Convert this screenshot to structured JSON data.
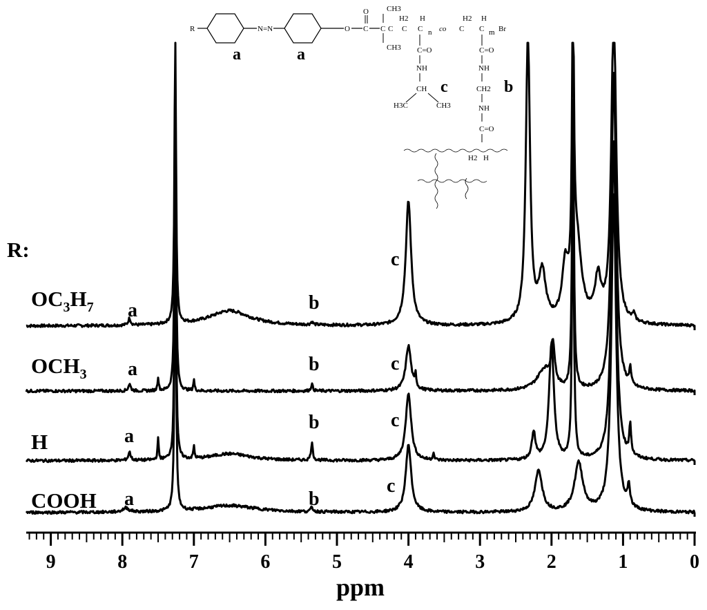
{
  "chart_data": {
    "type": "line",
    "title": "",
    "xlabel": "ppm",
    "ylabel": "",
    "xlim": [
      9.4,
      0
    ],
    "x_ticks": [
      "9",
      "8",
      "7",
      "6",
      "5",
      "4",
      "3",
      "2",
      "1",
      "0"
    ],
    "grid": false,
    "legend_title": "R:",
    "peak_labels": {
      "a": "a",
      "b": "b",
      "c": "c"
    },
    "series": [
      {
        "name": "OC3H7",
        "label_main": "OC",
        "label_sub1": "3",
        "label_mid": "H",
        "label_sub2": "7",
        "peaks": [
          {
            "x": 7.26,
            "h": 460,
            "w": 0.012
          },
          {
            "x": 7.9,
            "h": 10,
            "w": 0.02
          },
          {
            "x": 6.5,
            "h": 22,
            "w": 0.35
          },
          {
            "x": 5.35,
            "h": 4,
            "w": 0.02
          },
          {
            "x": 4.0,
            "h": 180,
            "w": 0.045
          },
          {
            "x": 2.33,
            "h": 420,
            "w": 0.035
          },
          {
            "x": 2.13,
            "h": 70,
            "w": 0.06
          },
          {
            "x": 1.81,
            "h": 70,
            "w": 0.05
          },
          {
            "x": 1.65,
            "h": 120,
            "w": 0.08
          },
          {
            "x": 1.7,
            "h": 420,
            "w": 0.015
          },
          {
            "x": 1.35,
            "h": 60,
            "w": 0.05
          },
          {
            "x": 1.13,
            "h": 460,
            "w": 0.04
          },
          {
            "x": 0.85,
            "h": 10,
            "w": 0.02
          }
        ]
      },
      {
        "name": "OCH3",
        "label_main": "OCH",
        "label_sub1": "3",
        "label_mid": "",
        "label_sub2": "",
        "peaks": [
          {
            "x": 7.26,
            "h": 460,
            "w": 0.012
          },
          {
            "x": 7.9,
            "h": 10,
            "w": 0.02
          },
          {
            "x": 7.5,
            "h": 20,
            "w": 0.01
          },
          {
            "x": 7.0,
            "h": 16,
            "w": 0.01
          },
          {
            "x": 5.35,
            "h": 10,
            "w": 0.015
          },
          {
            "x": 4.0,
            "h": 65,
            "w": 0.045
          },
          {
            "x": 3.9,
            "h": 20,
            "w": 0.01
          },
          {
            "x": 2.1,
            "h": 30,
            "w": 0.12
          },
          {
            "x": 1.98,
            "h": 60,
            "w": 0.03
          },
          {
            "x": 1.7,
            "h": 420,
            "w": 0.015
          },
          {
            "x": 1.13,
            "h": 460,
            "w": 0.04
          },
          {
            "x": 0.9,
            "h": 25,
            "w": 0.015
          }
        ]
      },
      {
        "name": "H",
        "label_main": "H",
        "label_sub1": "",
        "label_mid": "",
        "label_sub2": "",
        "peaks": [
          {
            "x": 7.26,
            "h": 460,
            "w": 0.012
          },
          {
            "x": 7.9,
            "h": 12,
            "w": 0.02
          },
          {
            "x": 7.5,
            "h": 30,
            "w": 0.01
          },
          {
            "x": 7.0,
            "h": 18,
            "w": 0.01
          },
          {
            "x": 6.5,
            "h": 10,
            "w": 0.35
          },
          {
            "x": 5.35,
            "h": 25,
            "w": 0.015
          },
          {
            "x": 4.0,
            "h": 98,
            "w": 0.045
          },
          {
            "x": 3.65,
            "h": 12,
            "w": 0.01
          },
          {
            "x": 2.25,
            "h": 40,
            "w": 0.03
          },
          {
            "x": 2.0,
            "h": 170,
            "w": 0.04
          },
          {
            "x": 1.7,
            "h": 420,
            "w": 0.015
          },
          {
            "x": 1.13,
            "h": 460,
            "w": 0.04
          },
          {
            "x": 0.9,
            "h": 45,
            "w": 0.015
          }
        ]
      },
      {
        "name": "COOH",
        "label_main": "COOH",
        "label_sub1": "",
        "label_mid": "",
        "label_sub2": "",
        "peaks": [
          {
            "x": 7.26,
            "h": 460,
            "w": 0.012
          },
          {
            "x": 7.95,
            "h": 6,
            "w": 0.05
          },
          {
            "x": 6.5,
            "h": 10,
            "w": 0.45
          },
          {
            "x": 5.35,
            "h": 6,
            "w": 0.02
          },
          {
            "x": 4.0,
            "h": 98,
            "w": 0.045
          },
          {
            "x": 2.18,
            "h": 60,
            "w": 0.06
          },
          {
            "x": 1.62,
            "h": 70,
            "w": 0.07
          },
          {
            "x": 1.13,
            "h": 460,
            "w": 0.04
          },
          {
            "x": 0.92,
            "h": 30,
            "w": 0.02
          }
        ]
      }
    ]
  },
  "structure": {
    "r": "R",
    "azo": "N=N",
    "o_link": "O",
    "carbonyl": "O",
    "c": "C",
    "ch3_top": "CH3",
    "ch3_bottom": "CH3",
    "h2": "H2",
    "h": "H",
    "n": "n",
    "co": "co",
    "m": "m",
    "br": "Br",
    "c_eq_o": "C=O",
    "nh": "NH",
    "ch": "CH",
    "ch2": "CH2",
    "h3c": "H3C",
    "ch3": "CH3",
    "label_a": "a",
    "label_b": "b",
    "label_c": "c"
  }
}
